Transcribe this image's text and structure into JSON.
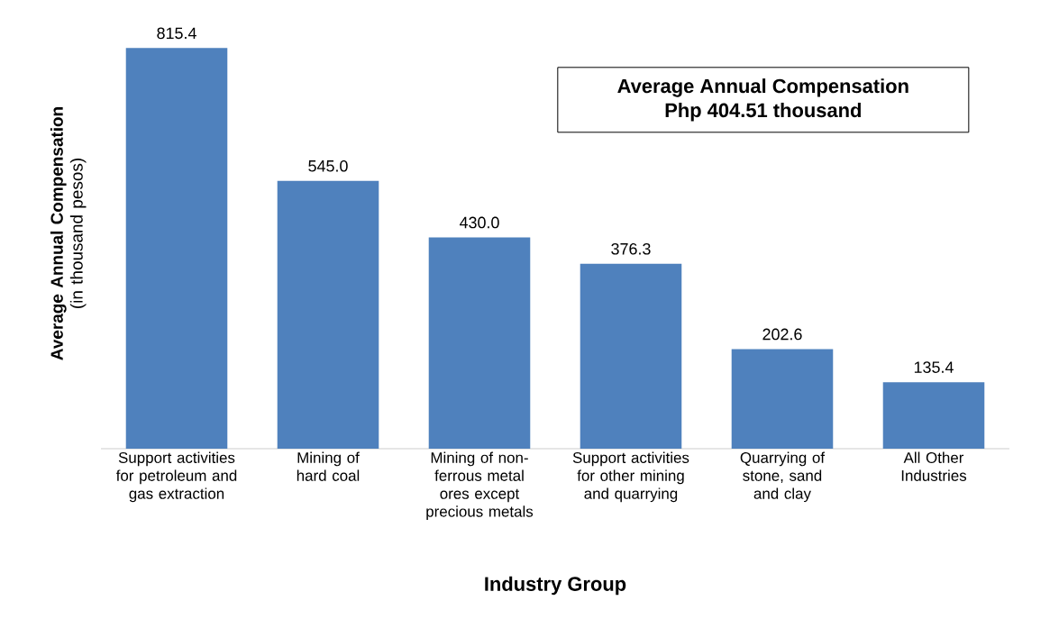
{
  "chart_data": {
    "type": "bar",
    "xlabel": "Industry Group",
    "ylabel": "**Average Annual Compensation** (in thousand pesos)",
    "categories": [
      "Support activities for petroleum and gas extraction",
      "Mining of hard coal",
      "Mining of non-ferrous metal ores except precious metals",
      "Support activities for other mining and quarrying",
      "Quarrying of stone, sand and clay",
      "All Other Industries"
    ],
    "values": [
      815.4,
      545.0,
      430.0,
      376.3,
      202.6,
      135.4
    ],
    "color": "#4f81bd",
    "value_labels": [
      "815.4",
      "545.0",
      "430.0",
      "376.3",
      "202.6",
      "135.4"
    ],
    "annotations": [
      "Average Annual Compensation",
      "Php 404.51 thousand"
    ]
  }
}
